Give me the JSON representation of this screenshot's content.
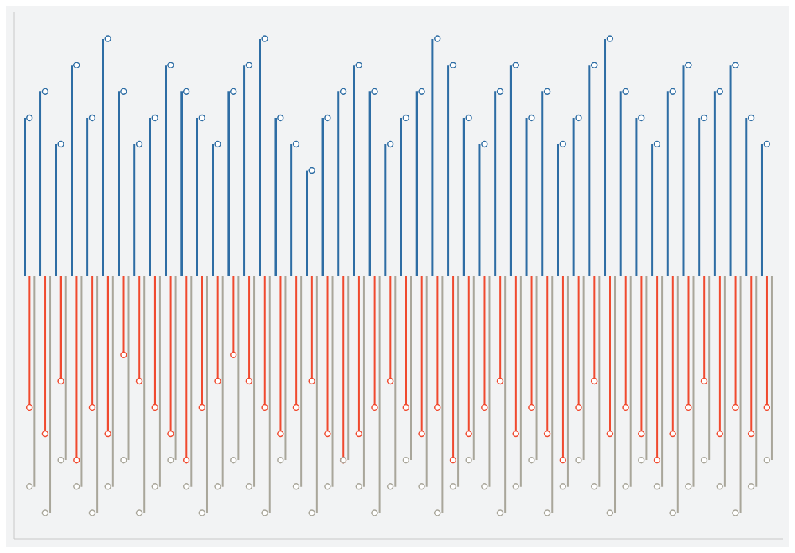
{
  "chart_data": {
    "type": "stem",
    "grid": false,
    "tick_labels": false,
    "xlim": [
      0,
      49
    ],
    "ylim": [
      -10,
      10
    ],
    "x": [
      1,
      2,
      3,
      4,
      5,
      6,
      7,
      8,
      9,
      10,
      11,
      12,
      13,
      14,
      15,
      16,
      17,
      18,
      19,
      20,
      21,
      22,
      23,
      24,
      25,
      26,
      27,
      28,
      29,
      30,
      31,
      32,
      33,
      34,
      35,
      36,
      37,
      38,
      39,
      40,
      41,
      42,
      43,
      44,
      45,
      46,
      47,
      48
    ],
    "series": [
      {
        "color": "#2e6da4",
        "marker": "o",
        "values": [
          6,
          7,
          5,
          8,
          6,
          9,
          7,
          5,
          6,
          8,
          7,
          6,
          5,
          7,
          8,
          9,
          6,
          5,
          4,
          6,
          7,
          8,
          7,
          5,
          6,
          7,
          9,
          8,
          6,
          5,
          7,
          8,
          6,
          7,
          5,
          6,
          8,
          9,
          7,
          6,
          5,
          7,
          8,
          6,
          7,
          8,
          6,
          5
        ]
      },
      {
        "color": "#f04a2f",
        "marker": "o",
        "values": [
          -5,
          -6,
          -4,
          -7,
          -5,
          -6,
          -3,
          -4,
          -5,
          -6,
          -7,
          -5,
          -4,
          -3,
          -4,
          -5,
          -6,
          -5,
          -4,
          -6,
          -7,
          -6,
          -5,
          -4,
          -5,
          -6,
          -5,
          -7,
          -6,
          -5,
          -4,
          -6,
          -5,
          -6,
          -7,
          -5,
          -4,
          -6,
          -5,
          -6,
          -7,
          -6,
          -5,
          -4,
          -6,
          -5,
          -6,
          -5
        ]
      },
      {
        "color": "#a9a69a",
        "marker": "o",
        "values": [
          -8,
          -9,
          -7,
          -8,
          -9,
          -8,
          -7,
          -9,
          -8,
          -7,
          -8,
          -9,
          -8,
          -7,
          -8,
          -9,
          -7,
          -8,
          -9,
          -8,
          -7,
          -8,
          -9,
          -8,
          -7,
          -8,
          -9,
          -8,
          -7,
          -8,
          -9,
          -8,
          -7,
          -9,
          -8,
          -7,
          -8,
          -9,
          -8,
          -7,
          -8,
          -9,
          -8,
          -7,
          -8,
          -9,
          -8,
          -7
        ]
      }
    ]
  }
}
